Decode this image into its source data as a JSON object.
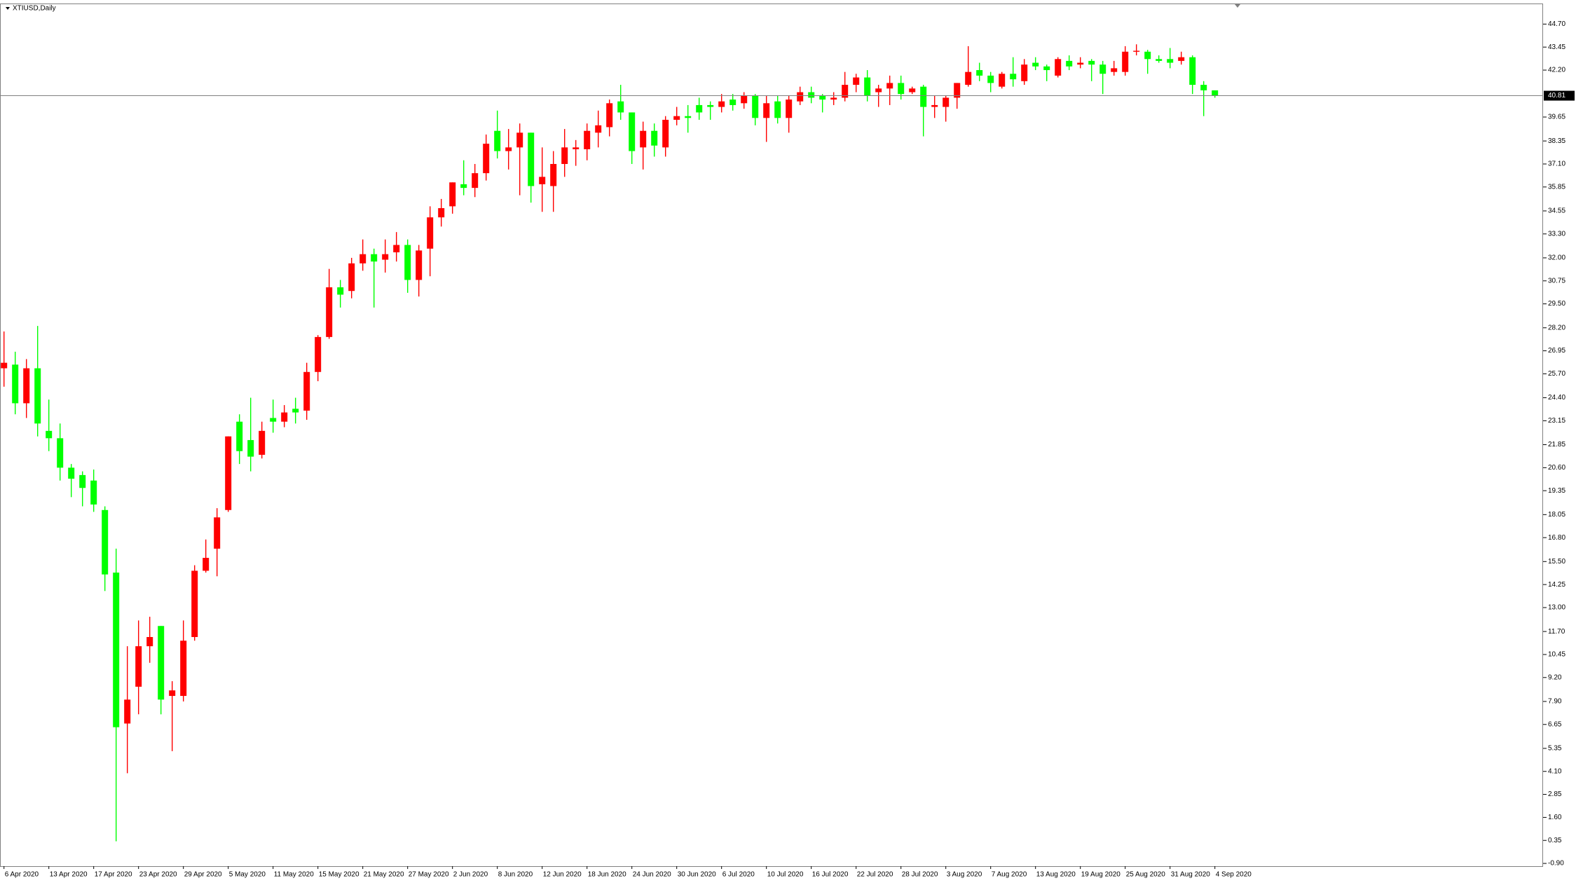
{
  "chart_data": {
    "type": "candlestick",
    "title": "XTIUSD,Daily",
    "categories": [
      "6 Apr 2020",
      null,
      null,
      null,
      "13 Apr 2020",
      null,
      null,
      null,
      "17 Apr 2020",
      null,
      null,
      null,
      "23 Apr 2020",
      null,
      null,
      null,
      "29 Apr 2020",
      null,
      null,
      null,
      "5 May 2020",
      null,
      null,
      null,
      "11 May 2020",
      null,
      null,
      null,
      "15 May 2020",
      null,
      null,
      null,
      "21 May 2020",
      null,
      null,
      null,
      "27 May 2020",
      null,
      null,
      null,
      "2 Jun 2020",
      null,
      null,
      null,
      "8 Jun 2020",
      null,
      null,
      null,
      "12 Jun 2020",
      null,
      null,
      null,
      "18 Jun 2020",
      null,
      null,
      null,
      "24 Jun 2020",
      null,
      null,
      null,
      "30 Jun 2020",
      null,
      null,
      null,
      "6 Jul 2020",
      null,
      null,
      null,
      "10 Jul 2020",
      null,
      null,
      null,
      "16 Jul 2020",
      null,
      null,
      null,
      "22 Jul 2020",
      null,
      null,
      null,
      "28 Jul 2020",
      null,
      null,
      null,
      "3 Aug 2020",
      null,
      null,
      null,
      "7 Aug 2020",
      null,
      null,
      null,
      "13 Aug 2020",
      null,
      null,
      null,
      "19 Aug 2020",
      null,
      null,
      null,
      "25 Aug 2020",
      null,
      null,
      null,
      "31 Aug 2020",
      null,
      null,
      null,
      "4 Sep 2020"
    ],
    "open": [
      26.0,
      26.2,
      24.1,
      26.0,
      22.6,
      22.2,
      20.6,
      20.2,
      19.9,
      18.3,
      14.9,
      6.7,
      8.7,
      10.9,
      12.0,
      8.2,
      8.2,
      11.4,
      15.0,
      16.2,
      18.3,
      23.1,
      22.1,
      21.3,
      23.3,
      23.1,
      23.8,
      23.7,
      25.8,
      27.7,
      30.4,
      30.2,
      31.7,
      32.2,
      31.9,
      32.3,
      32.7,
      30.8,
      32.5,
      34.2,
      34.8,
      36.0,
      35.8,
      36.6,
      38.9,
      37.8,
      38.0,
      38.8,
      36.0,
      35.9,
      37.1,
      37.9,
      37.9,
      38.8,
      39.1,
      40.5,
      39.9,
      38.0,
      38.9,
      38.0,
      39.5,
      39.7,
      40.3,
      40.3,
      40.2,
      40.6,
      40.4,
      40.8,
      39.6,
      40.5,
      39.6,
      40.5,
      41.0,
      40.8,
      40.6,
      40.7,
      41.4,
      41.8,
      41.0,
      41.2,
      41.5,
      41.0,
      41.3,
      40.2,
      40.2,
      40.7,
      41.4,
      42.2,
      41.9,
      41.3,
      42.0,
      41.6,
      42.6,
      42.4,
      41.9,
      42.7,
      42.5,
      42.7,
      42.5,
      42.1,
      42.1,
      43.2,
      43.2,
      42.8,
      42.8,
      42.7,
      42.9,
      41.4,
      41.1
    ],
    "high": [
      28.0,
      26.9,
      26.5,
      28.3,
      24.3,
      23.0,
      20.8,
      20.4,
      20.5,
      18.5,
      16.2,
      10.9,
      12.3,
      12.5,
      12.0,
      9.0,
      12.3,
      15.3,
      16.7,
      18.4,
      22.3,
      23.5,
      24.4,
      23.1,
      24.3,
      24.0,
      24.4,
      26.3,
      27.8,
      31.4,
      30.8,
      32.0,
      33.0,
      32.5,
      33.0,
      33.4,
      33.0,
      32.7,
      34.8,
      35.2,
      36.1,
      37.3,
      37.1,
      38.7,
      40.0,
      39.0,
      39.3,
      38.8,
      38.0,
      37.8,
      39.0,
      38.4,
      39.3,
      40.0,
      40.6,
      41.4,
      39.9,
      39.4,
      39.3,
      39.7,
      40.2,
      40.3,
      40.7,
      40.5,
      40.9,
      40.9,
      41.0,
      40.9,
      40.8,
      40.8,
      40.8,
      41.3,
      41.3,
      40.9,
      41.0,
      42.1,
      42.0,
      42.2,
      41.4,
      41.9,
      41.9,
      41.3,
      41.4,
      40.8,
      40.8,
      41.5,
      43.5,
      42.6,
      42.1,
      42.1,
      42.9,
      42.8,
      42.9,
      42.5,
      42.9,
      43.0,
      42.9,
      42.8,
      42.7,
      42.7,
      43.5,
      43.6,
      43.3,
      43.0,
      43.4,
      43.2,
      43.0,
      41.6,
      41.1
    ],
    "low": [
      25.0,
      23.5,
      23.3,
      22.3,
      21.5,
      19.9,
      19.0,
      18.5,
      18.2,
      13.9,
      0.3,
      4.0,
      7.2,
      10.0,
      7.2,
      5.2,
      7.9,
      11.2,
      14.9,
      14.7,
      18.2,
      20.8,
      20.4,
      21.1,
      22.5,
      22.8,
      23.0,
      23.2,
      25.3,
      27.6,
      29.3,
      29.8,
      31.3,
      29.3,
      31.2,
      31.8,
      30.1,
      29.9,
      31.0,
      33.7,
      34.4,
      35.4,
      35.3,
      36.2,
      37.4,
      36.8,
      35.4,
      35.0,
      34.5,
      34.5,
      36.4,
      37.0,
      37.3,
      38.0,
      38.6,
      39.5,
      37.1,
      36.8,
      37.5,
      37.5,
      39.2,
      38.8,
      39.5,
      39.5,
      39.9,
      40.0,
      40.1,
      39.2,
      38.3,
      39.3,
      38.8,
      40.3,
      40.4,
      39.9,
      40.3,
      40.5,
      41.0,
      40.5,
      40.2,
      40.3,
      40.6,
      40.9,
      38.6,
      39.6,
      39.4,
      40.1,
      41.3,
      41.6,
      41.0,
      41.2,
      41.3,
      41.4,
      42.2,
      41.6,
      41.8,
      42.2,
      42.3,
      41.6,
      40.9,
      41.9,
      41.9,
      43.0,
      42.0,
      42.6,
      42.3,
      42.5,
      40.9,
      39.7,
      40.7
    ],
    "close": [
      26.3,
      24.1,
      26.0,
      23.0,
      22.2,
      20.6,
      20.0,
      19.5,
      18.6,
      14.8,
      6.5,
      8.0,
      10.9,
      11.4,
      8.0,
      8.5,
      11.2,
      15.0,
      15.7,
      17.9,
      22.3,
      21.5,
      21.2,
      22.6,
      23.1,
      23.6,
      23.6,
      25.8,
      27.7,
      30.4,
      30.0,
      31.7,
      32.2,
      31.8,
      32.2,
      32.7,
      30.8,
      32.4,
      34.2,
      34.7,
      36.1,
      35.8,
      36.6,
      38.2,
      37.8,
      38.0,
      38.8,
      35.9,
      36.4,
      37.1,
      38.0,
      38.0,
      38.9,
      39.2,
      40.4,
      39.9,
      37.8,
      38.9,
      38.1,
      39.5,
      39.7,
      39.6,
      39.9,
      40.2,
      40.5,
      40.3,
      40.8,
      39.6,
      40.4,
      39.6,
      40.6,
      41.0,
      40.7,
      40.6,
      40.7,
      41.4,
      41.8,
      40.8,
      41.2,
      41.5,
      40.9,
      41.2,
      40.2,
      40.3,
      40.7,
      41.5,
      42.1,
      41.9,
      41.5,
      42.0,
      41.7,
      42.5,
      42.4,
      42.2,
      42.8,
      42.4,
      42.6,
      42.5,
      42.0,
      42.3,
      43.2,
      43.25,
      42.8,
      42.7,
      42.6,
      42.9,
      41.4,
      41.1,
      40.81
    ],
    "colors": {
      "up": "#ff0000",
      "down": "#00ff00"
    },
    "current_price": 40.81,
    "ylim": [
      -1.05,
      45.78
    ],
    "yticks": [
      {
        "value": 44.7,
        "label": "44.70"
      },
      43.45,
      {
        "value": 42.2,
        "label": "42.20"
      },
      39.65,
      38.35,
      {
        "value": 37.1,
        "label": "37.10"
      },
      35.85,
      34.55,
      {
        "value": 33.3,
        "label": "33.30"
      },
      {
        "value": 32,
        "label": "32.00"
      },
      30.75,
      {
        "value": 29.5,
        "label": "29.50"
      },
      {
        "value": 28.2,
        "label": "28.20"
      },
      26.95,
      {
        "value": 25.7,
        "label": "25.70"
      },
      {
        "value": 24.4,
        "label": "24.40"
      },
      23.15,
      21.85,
      {
        "value": 20.6,
        "label": "20.60"
      },
      19.35,
      18.05,
      {
        "value": 16.8,
        "label": "16.80"
      },
      {
        "value": 15.5,
        "label": "15.50"
      },
      14.25,
      {
        "value": 13,
        "label": "13.00"
      },
      {
        "value": 11.7,
        "label": "11.70"
      },
      10.45,
      {
        "value": 9.2,
        "label": "9.20"
      },
      {
        "value": 7.9,
        "label": "7.90"
      },
      6.65,
      5.35,
      {
        "value": 4.1,
        "label": "4.10"
      },
      2.85,
      {
        "value": 1.6,
        "label": "1.60"
      },
      0.35,
      {
        "value": -0.9,
        "label": "-0.90"
      }
    ]
  }
}
